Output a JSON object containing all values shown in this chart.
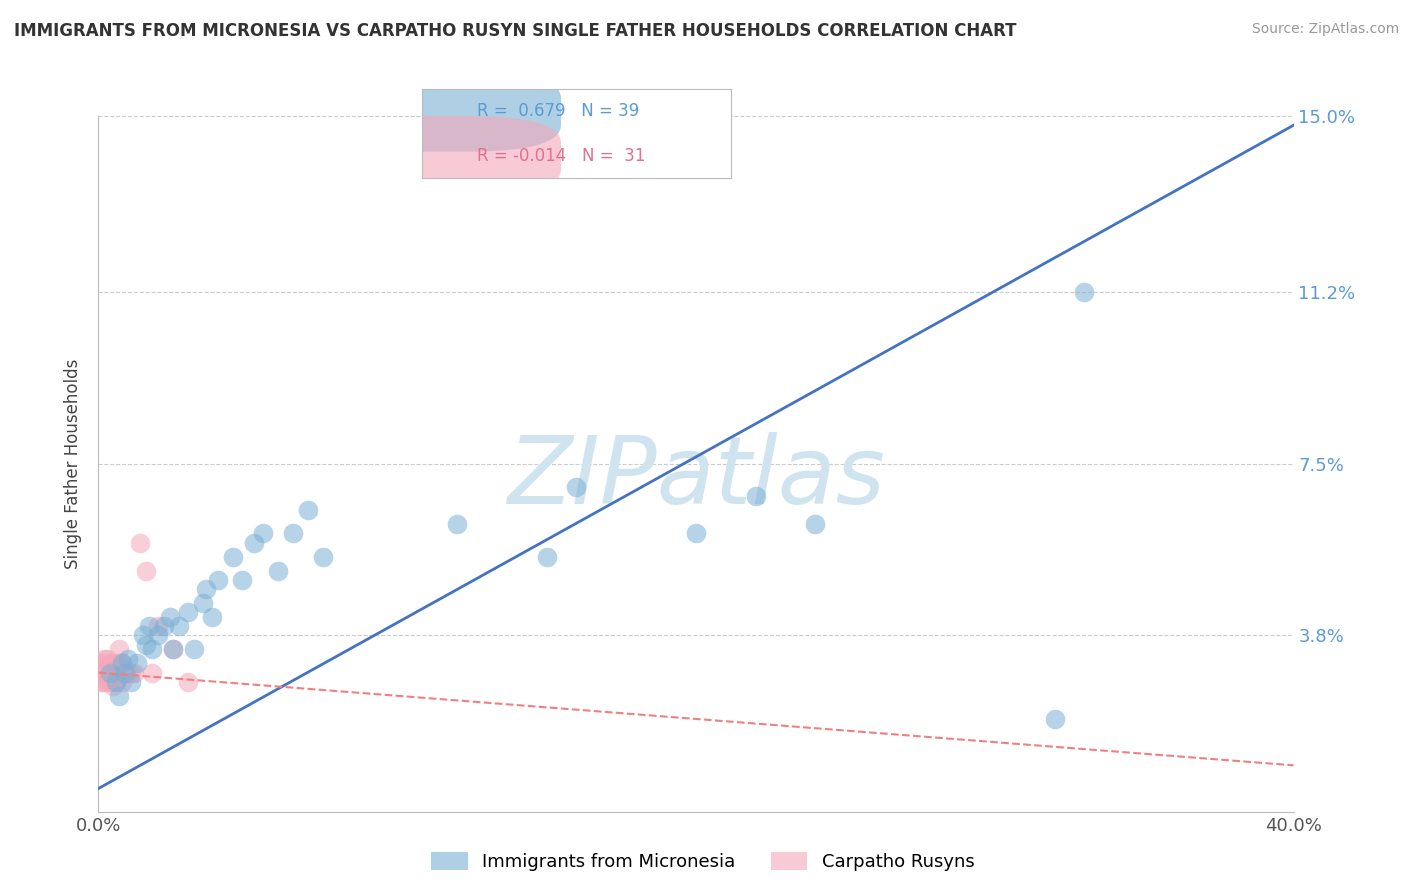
{
  "title": "IMMIGRANTS FROM MICRONESIA VS CARPATHO RUSYN SINGLE FATHER HOUSEHOLDS CORRELATION CHART",
  "source": "Source: ZipAtlas.com",
  "ylabel": "Single Father Households",
  "xlim": [
    0.0,
    0.4
  ],
  "ylim": [
    0.0,
    0.15
  ],
  "yticks": [
    0.038,
    0.075,
    0.112,
    0.15
  ],
  "ytick_labels": [
    "3.8%",
    "7.5%",
    "11.2%",
    "15.0%"
  ],
  "xtick_labels": [
    "0.0%",
    "40.0%"
  ],
  "blue_R": 0.679,
  "blue_N": 39,
  "pink_R": -0.014,
  "pink_N": 31,
  "blue_color": "#7BAFD4",
  "pink_color": "#F4A7B9",
  "trendline_blue": "#4472C4",
  "trendline_pink": "#F08080",
  "blue_label": "Immigrants from Micronesia",
  "pink_label": "Carpatho Rusyns",
  "watermark": "ZIPatlas",
  "watermark_color": "#D0E4F0",
  "background_color": "#FFFFFF",
  "grid_color": "#CCCCCC",
  "blue_scatter_x": [
    0.004,
    0.006,
    0.007,
    0.008,
    0.009,
    0.01,
    0.011,
    0.013,
    0.015,
    0.016,
    0.017,
    0.018,
    0.02,
    0.022,
    0.024,
    0.025,
    0.027,
    0.03,
    0.032,
    0.035,
    0.036,
    0.038,
    0.04,
    0.045,
    0.048,
    0.052,
    0.055,
    0.06,
    0.065,
    0.07,
    0.075,
    0.12,
    0.15,
    0.16,
    0.2,
    0.22,
    0.24,
    0.32,
    0.33
  ],
  "blue_scatter_y": [
    0.03,
    0.028,
    0.025,
    0.032,
    0.03,
    0.033,
    0.028,
    0.032,
    0.038,
    0.036,
    0.04,
    0.035,
    0.038,
    0.04,
    0.042,
    0.035,
    0.04,
    0.043,
    0.035,
    0.045,
    0.048,
    0.042,
    0.05,
    0.055,
    0.05,
    0.058,
    0.06,
    0.052,
    0.06,
    0.065,
    0.055,
    0.062,
    0.055,
    0.07,
    0.06,
    0.068,
    0.062,
    0.02,
    0.112
  ],
  "pink_scatter_x": [
    0.001,
    0.001,
    0.001,
    0.002,
    0.002,
    0.002,
    0.003,
    0.003,
    0.003,
    0.004,
    0.004,
    0.004,
    0.005,
    0.005,
    0.005,
    0.006,
    0.006,
    0.007,
    0.007,
    0.008,
    0.008,
    0.009,
    0.01,
    0.011,
    0.012,
    0.014,
    0.016,
    0.018,
    0.02,
    0.025,
    0.03
  ],
  "pink_scatter_y": [
    0.028,
    0.03,
    0.032,
    0.028,
    0.03,
    0.033,
    0.028,
    0.03,
    0.033,
    0.028,
    0.03,
    0.032,
    0.027,
    0.03,
    0.032,
    0.028,
    0.03,
    0.032,
    0.035,
    0.028,
    0.032,
    0.03,
    0.03,
    0.03,
    0.03,
    0.058,
    0.052,
    0.03,
    0.04,
    0.035,
    0.028
  ],
  "blue_trendline_x": [
    0.0,
    0.4
  ],
  "blue_trendline_y": [
    0.005,
    0.148
  ],
  "pink_trendline_x": [
    0.0,
    0.4
  ],
  "pink_trendline_y": [
    0.03,
    0.01
  ]
}
